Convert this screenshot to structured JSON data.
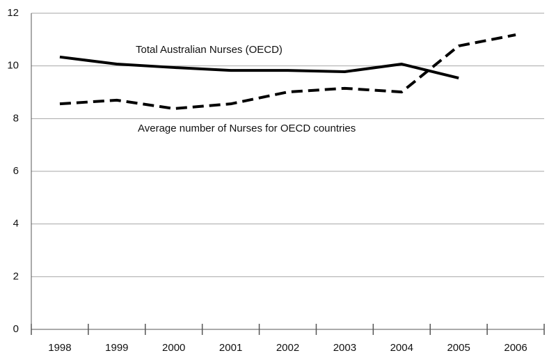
{
  "chart_data": {
    "type": "line",
    "categories": [
      "1998",
      "1999",
      "2000",
      "2001",
      "2002",
      "2003",
      "2004",
      "2005",
      "2006"
    ],
    "series": [
      {
        "name": "Total Australian Nurses (OECD)",
        "color": "#000000",
        "dash": "solid",
        "values": [
          10.34,
          10.07,
          9.94,
          9.83,
          9.83,
          9.78,
          10.07,
          9.54,
          null
        ]
      },
      {
        "name": "Average number of Nurses for OECD countries",
        "color": "#000000",
        "dash": "dashed",
        "values": [
          8.56,
          8.7,
          8.38,
          8.56,
          9.01,
          9.15,
          9.01,
          10.76,
          11.18
        ]
      }
    ],
    "ylim": [
      0,
      12
    ],
    "yticks": [
      0,
      2,
      4,
      6,
      8,
      10,
      12
    ],
    "grid": true
  }
}
